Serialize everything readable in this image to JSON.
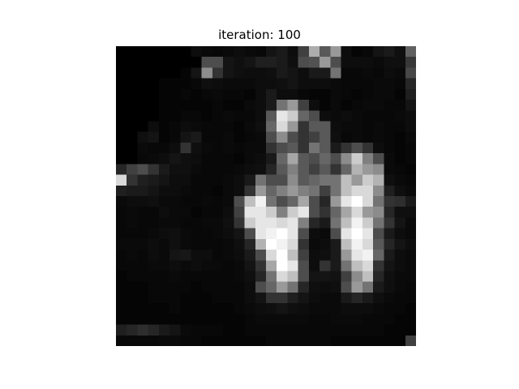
{
  "figure": {
    "title": "iteration: 100"
  },
  "image": {
    "colormap": "gray",
    "grid": 28,
    "cells": [
      [
        0,
        0,
        0,
        0,
        0,
        0,
        0,
        0.05,
        0.04,
        0.03,
        0.04,
        0.05,
        0.04,
        0.03,
        0.08,
        0.1,
        0.05,
        0.25,
        0.68,
        0.35,
        0.6,
        0.05,
        0.02,
        0.03,
        0.08,
        0.1,
        0.06,
        0.38
      ],
      [
        0,
        0,
        0,
        0,
        0,
        0,
        0,
        0,
        0.3,
        0.3,
        0.08,
        0.06,
        0.08,
        0.12,
        0.12,
        0.1,
        0.06,
        0.3,
        0.32,
        0.6,
        0.3,
        0.05,
        0.05,
        0.05,
        0.04,
        0.06,
        0.06,
        0.22
      ],
      [
        0,
        0,
        0,
        0,
        0,
        0,
        0.02,
        0.08,
        0.55,
        0.2,
        0.08,
        0.06,
        0.05,
        0.05,
        0.06,
        0.1,
        0.08,
        0.05,
        0.1,
        0.1,
        0.45,
        0.03,
        0.03,
        0.04,
        0.03,
        0.05,
        0.04,
        0.28
      ],
      [
        0,
        0,
        0,
        0,
        0.02,
        0.02,
        0.02,
        0.03,
        0.06,
        0.05,
        0.04,
        0.04,
        0.04,
        0.05,
        0.05,
        0.06,
        0.08,
        0.05,
        0.05,
        0.05,
        0.04,
        0.03,
        0.03,
        0.03,
        0.04,
        0.04,
        0.03,
        0.15
      ],
      [
        0,
        0,
        0,
        0,
        0.02,
        0.02,
        0.03,
        0.02,
        0.03,
        0.04,
        0.03,
        0.03,
        0.02,
        0.05,
        0.1,
        0.05,
        0.05,
        0.03,
        0.02,
        0.02,
        0.04,
        0.03,
        0.02,
        0.03,
        0.04,
        0.04,
        0.02,
        0.12
      ],
      [
        0,
        0,
        0,
        0,
        0.02,
        0.02,
        0.02,
        0.02,
        0.02,
        0.03,
        0.02,
        0.02,
        0.04,
        0.05,
        0.1,
        0.45,
        0.6,
        0.25,
        0.05,
        0.02,
        0.04,
        0.02,
        0.03,
        0.04,
        0.04,
        0.03,
        0.03,
        0.08
      ],
      [
        0,
        0,
        0,
        0,
        0.02,
        0.02,
        0.03,
        0.03,
        0.02,
        0.03,
        0.04,
        0.03,
        0.03,
        0.05,
        0.35,
        0.9,
        0.8,
        0.4,
        0.3,
        0.05,
        0.04,
        0.05,
        0.04,
        0.03,
        0.03,
        0.03,
        0.04,
        0.05
      ],
      [
        0,
        0,
        0,
        0.05,
        0.02,
        0.03,
        0.05,
        0.04,
        0.03,
        0.03,
        0.03,
        0.02,
        0.04,
        0.06,
        0.4,
        0.85,
        0.6,
        0.2,
        0.35,
        0.35,
        0.05,
        0.04,
        0.04,
        0.03,
        0.04,
        0.03,
        0.03,
        0.05
      ],
      [
        0,
        0,
        0.06,
        0.08,
        0.02,
        0.03,
        0.08,
        0.1,
        0.03,
        0.03,
        0.04,
        0.02,
        0.03,
        0.04,
        0.3,
        0.55,
        0.3,
        0.2,
        0.25,
        0.35,
        0.06,
        0.03,
        0.04,
        0.03,
        0.04,
        0.03,
        0.02,
        0.04
      ],
      [
        0,
        0,
        0.04,
        0.03,
        0.03,
        0.05,
        0.2,
        0.06,
        0.04,
        0.03,
        0.04,
        0.03,
        0.04,
        0.04,
        0.2,
        0.3,
        0.35,
        0.2,
        0.45,
        0.35,
        0.1,
        0.2,
        0.3,
        0.2,
        0.05,
        0.03,
        0.02,
        0.03
      ],
      [
        0,
        0,
        0.03,
        0.04,
        0.05,
        0.08,
        0.06,
        0.05,
        0.03,
        0.03,
        0.03,
        0.02,
        0.04,
        0.05,
        0.1,
        0.4,
        0.65,
        0.35,
        0.3,
        0.4,
        0.3,
        0.55,
        0.8,
        0.5,
        0.3,
        0.04,
        0.02,
        0.03
      ],
      [
        0.15,
        0.25,
        0.3,
        0.2,
        0.1,
        0.06,
        0.06,
        0.04,
        0.03,
        0.03,
        0.03,
        0.04,
        0.05,
        0.06,
        0.15,
        0.35,
        0.5,
        0.35,
        0.25,
        0.35,
        0.2,
        0.4,
        0.7,
        0.6,
        0.55,
        0.04,
        0.03,
        0.02
      ],
      [
        0.85,
        0.2,
        0.12,
        0.1,
        0.08,
        0.05,
        0.05,
        0.03,
        0.03,
        0.03,
        0.04,
        0.05,
        0.1,
        0.45,
        0.3,
        0.3,
        0.55,
        0.35,
        0.4,
        0.45,
        0.45,
        0.75,
        0.6,
        0.8,
        0.7,
        0.06,
        0.04,
        0.03
      ],
      [
        0.12,
        0.1,
        0.1,
        0.08,
        0.05,
        0.05,
        0.04,
        0.03,
        0.03,
        0.02,
        0.04,
        0.05,
        0.2,
        0.6,
        0.4,
        0.5,
        0.6,
        0.5,
        0.45,
        0.25,
        0.45,
        0.75,
        0.85,
        0.85,
        0.55,
        0.12,
        0.06,
        0.04
      ],
      [
        0.04,
        0.05,
        0.05,
        0.06,
        0.04,
        0.04,
        0.03,
        0.03,
        0.04,
        0.03,
        0.04,
        0.3,
        0.75,
        0.95,
        0.45,
        0.3,
        0.4,
        0.65,
        0.3,
        0.15,
        0.6,
        0.9,
        1.0,
        0.85,
        0.45,
        0.2,
        0.18,
        0.1
      ],
      [
        0.03,
        0.04,
        0.03,
        0.03,
        0.05,
        0.04,
        0.04,
        0.02,
        0.03,
        0.03,
        0.05,
        0.25,
        0.9,
        0.9,
        0.8,
        0.5,
        0.8,
        0.9,
        0.3,
        0.2,
        0.4,
        0.65,
        0.85,
        0.6,
        0.55,
        0.15,
        0.06,
        0.06
      ],
      [
        0.03,
        0.04,
        0.03,
        0.03,
        0.04,
        0.04,
        0.03,
        0.03,
        0.04,
        0.04,
        0.06,
        0.2,
        0.8,
        0.9,
        0.9,
        0.85,
        0.9,
        0.5,
        0.15,
        0.1,
        0.45,
        0.75,
        0.95,
        0.8,
        0.45,
        0.2,
        0.08,
        0.04
      ],
      [
        0.03,
        0.03,
        0.03,
        0.04,
        0.05,
        0.06,
        0.04,
        0.03,
        0.03,
        0.04,
        0.05,
        0.08,
        0.3,
        0.9,
        0.95,
        1.0,
        0.9,
        0.3,
        0.05,
        0.04,
        0.3,
        0.9,
        1.0,
        0.9,
        0.3,
        0.1,
        0.05,
        0.04
      ],
      [
        0.04,
        0.04,
        0.04,
        0.05,
        0.04,
        0.06,
        0.04,
        0.03,
        0.03,
        0.03,
        0.04,
        0.06,
        0.15,
        0.7,
        1.0,
        0.95,
        0.85,
        0.2,
        0.04,
        0.05,
        0.1,
        0.75,
        0.95,
        0.85,
        0.35,
        0.15,
        0.08,
        0.05
      ],
      [
        0.03,
        0.04,
        0.03,
        0.05,
        0.04,
        0.08,
        0.09,
        0.05,
        0.05,
        0.03,
        0.04,
        0.05,
        0.1,
        0.3,
        0.85,
        1.0,
        0.75,
        0.25,
        0.05,
        0.06,
        0.1,
        0.6,
        0.9,
        0.95,
        0.4,
        0.1,
        0.05,
        0.04
      ],
      [
        0.03,
        0.03,
        0.03,
        0.04,
        0.04,
        0.05,
        0.04,
        0.05,
        0.04,
        0.04,
        0.03,
        0.04,
        0.08,
        0.2,
        0.65,
        1.0,
        0.9,
        0.3,
        0.05,
        0.2,
        0.1,
        0.45,
        0.75,
        0.85,
        0.2,
        0.08,
        0.05,
        0.04
      ],
      [
        0.02,
        0.03,
        0.03,
        0.03,
        0.03,
        0.04,
        0.03,
        0.03,
        0.03,
        0.03,
        0.03,
        0.04,
        0.06,
        0.15,
        0.45,
        0.85,
        0.75,
        0.3,
        0.08,
        0.08,
        0.07,
        0.25,
        0.55,
        0.75,
        0.15,
        0.06,
        0.04,
        0.04
      ],
      [
        0.02,
        0.02,
        0.02,
        0.03,
        0.03,
        0.03,
        0.03,
        0.02,
        0.03,
        0.03,
        0.03,
        0.03,
        0.05,
        0.3,
        0.4,
        0.6,
        0.45,
        0.15,
        0.06,
        0.05,
        0.06,
        0.3,
        0.6,
        0.45,
        0.1,
        0.06,
        0.04,
        0.03
      ],
      [
        0.02,
        0.02,
        0.02,
        0.03,
        0.03,
        0.03,
        0.02,
        0.02,
        0.02,
        0.03,
        0.03,
        0.03,
        0.05,
        0.08,
        0.2,
        0.2,
        0.12,
        0.08,
        0.05,
        0.04,
        0.04,
        0.1,
        0.15,
        0.1,
        0.06,
        0.04,
        0.03,
        0.03
      ],
      [
        0.02,
        0.02,
        0.02,
        0.02,
        0.02,
        0.03,
        0.02,
        0.02,
        0.02,
        0.02,
        0.02,
        0.03,
        0.04,
        0.05,
        0.06,
        0.08,
        0.06,
        0.05,
        0.04,
        0.04,
        0.04,
        0.05,
        0.05,
        0.05,
        0.04,
        0.03,
        0.03,
        0.02
      ],
      [
        0.02,
        0.02,
        0.02,
        0.02,
        0.02,
        0.02,
        0.02,
        0.02,
        0.02,
        0.02,
        0.02,
        0.02,
        0.03,
        0.04,
        0.04,
        0.04,
        0.04,
        0.04,
        0.03,
        0.03,
        0.04,
        0.04,
        0.04,
        0.03,
        0.03,
        0.03,
        0.02,
        0.02
      ],
      [
        0.12,
        0.15,
        0.18,
        0.15,
        0.1,
        0.08,
        0.04,
        0.03,
        0.03,
        0.03,
        0.02,
        0.02,
        0.03,
        0.03,
        0.03,
        0.03,
        0.03,
        0.03,
        0.03,
        0.03,
        0.03,
        0.03,
        0.03,
        0.03,
        0.03,
        0.02,
        0.02,
        0.02
      ],
      [
        0.03,
        0.03,
        0.03,
        0.03,
        0.04,
        0.04,
        0.03,
        0.03,
        0.02,
        0.02,
        0.02,
        0.02,
        0.02,
        0.02,
        0.03,
        0.03,
        0.03,
        0.03,
        0.03,
        0.03,
        0.02,
        0.02,
        0.02,
        0.02,
        0.02,
        0.02,
        0.02,
        0.25
      ]
    ]
  }
}
